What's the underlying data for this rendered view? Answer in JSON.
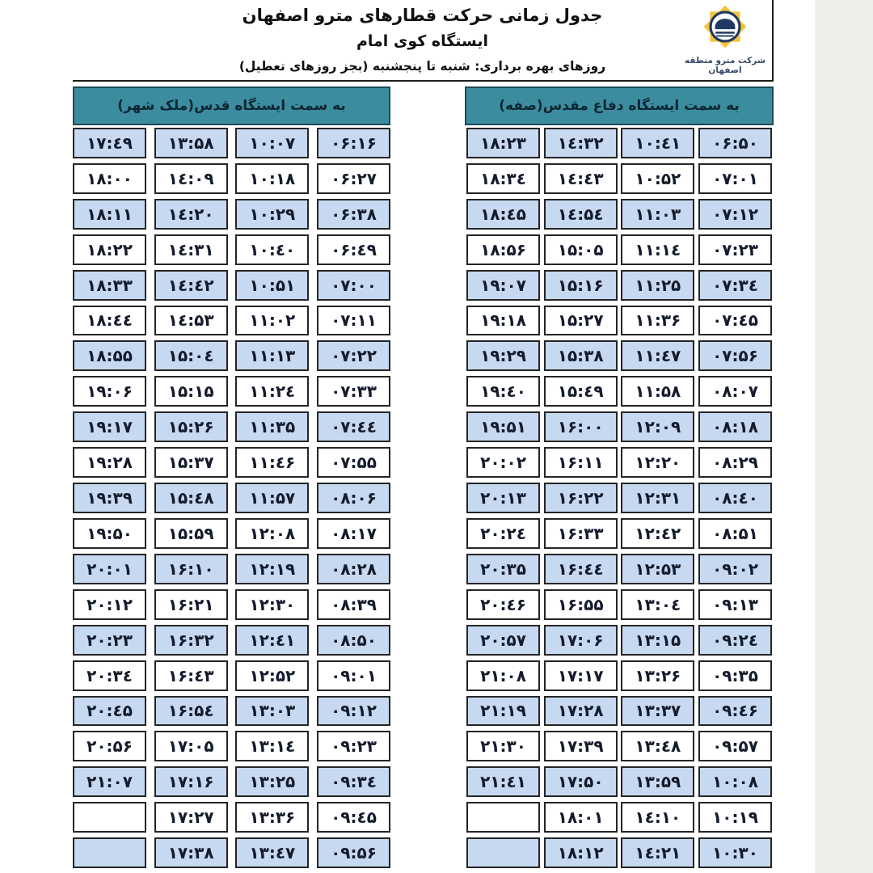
{
  "header": {
    "title": "جدول زمانی حرکت قطارهای مترو اصفهان",
    "station": "ایستگاه کوی امام",
    "operating_days": "روزهای بهره برداری: شنبه تا پنجشنبه (بجز روزهای تعطیل)",
    "company": "شرکت مترو منطقه اصفهان"
  },
  "colors": {
    "direction_header_teal": "#3b8c9f",
    "row_alternate_blue": "#c6d9f0",
    "logo_star_gold": "#f2c437",
    "logo_navy": "#1f3864",
    "cell_border": "#252525"
  },
  "tables": [
    {
      "id": "sofeh",
      "direction_label": "به سمت ایستگاه دفاع مقدس(صفه)",
      "columns": [
        [
          "۰۶:۵۰",
          "۰۷:۰۱",
          "۰۷:۱۲",
          "۰۷:۲۳",
          "۰۷:۳٤",
          "۰۷:٤۵",
          "۰۷:۵۶",
          "۰۸:۰۷",
          "۰۸:۱۸",
          "۰۸:۲۹",
          "۰۸:٤۰",
          "۰۸:۵۱",
          "۰۹:۰۲",
          "۰۹:۱۳",
          "۰۹:۲٤",
          "۰۹:۳۵",
          "۰۹:٤۶",
          "۰۹:۵۷",
          "۱۰:۰۸",
          "۱۰:۱۹",
          "۱۰:۳۰"
        ],
        [
          "۱۰:٤۱",
          "۱۰:۵۲",
          "۱۱:۰۳",
          "۱۱:۱٤",
          "۱۱:۲۵",
          "۱۱:۳۶",
          "۱۱:٤۷",
          "۱۱:۵۸",
          "۱۲:۰۹",
          "۱۲:۲۰",
          "۱۲:۳۱",
          "۱۲:٤۲",
          "۱۲:۵۳",
          "۱۳:۰٤",
          "۱۳:۱۵",
          "۱۳:۲۶",
          "۱۳:۳۷",
          "۱۳:٤۸",
          "۱۳:۵۹",
          "۱٤:۱۰",
          "۱٤:۲۱"
        ],
        [
          "۱٤:۳۲",
          "۱٤:٤۳",
          "۱٤:۵٤",
          "۱۵:۰۵",
          "۱۵:۱۶",
          "۱۵:۲۷",
          "۱۵:۳۸",
          "۱۵:٤۹",
          "۱۶:۰۰",
          "۱۶:۱۱",
          "۱۶:۲۲",
          "۱۶:۳۳",
          "۱۶:٤٤",
          "۱۶:۵۵",
          "۱۷:۰۶",
          "۱۷:۱۷",
          "۱۷:۲۸",
          "۱۷:۳۹",
          "۱۷:۵۰",
          "۱۸:۰۱",
          "۱۸:۱۲"
        ],
        [
          "۱۸:۲۳",
          "۱۸:۳٤",
          "۱۸:٤۵",
          "۱۸:۵۶",
          "۱۹:۰۷",
          "۱۹:۱۸",
          "۱۹:۲۹",
          "۱۹:٤۰",
          "۱۹:۵۱",
          "۲۰:۰۲",
          "۲۰:۱۳",
          "۲۰:۲٤",
          "۲۰:۳۵",
          "۲۰:٤۶",
          "۲۰:۵۷",
          "۲۱:۰۸",
          "۲۱:۱۹",
          "۲۱:۳۰",
          "۲۱:٤۱",
          "",
          ""
        ]
      ]
    },
    {
      "id": "qods",
      "direction_label": "به سمت ایستگاه قدس(ملک شهر)",
      "columns": [
        [
          "۰۶:۱۶",
          "۰۶:۲۷",
          "۰۶:۳۸",
          "۰۶:٤۹",
          "۰۷:۰۰",
          "۰۷:۱۱",
          "۰۷:۲۲",
          "۰۷:۳۳",
          "۰۷:٤٤",
          "۰۷:۵۵",
          "۰۸:۰۶",
          "۰۸:۱۷",
          "۰۸:۲۸",
          "۰۸:۳۹",
          "۰۸:۵۰",
          "۰۹:۰۱",
          "۰۹:۱۲",
          "۰۹:۲۳",
          "۰۹:۳٤",
          "۰۹:٤۵",
          "۰۹:۵۶"
        ],
        [
          "۱۰:۰۷",
          "۱۰:۱۸",
          "۱۰:۲۹",
          "۱۰:٤۰",
          "۱۰:۵۱",
          "۱۱:۰۲",
          "۱۱:۱۳",
          "۱۱:۲٤",
          "۱۱:۳۵",
          "۱۱:٤۶",
          "۱۱:۵۷",
          "۱۲:۰۸",
          "۱۲:۱۹",
          "۱۲:۳۰",
          "۱۲:٤۱",
          "۱۲:۵۲",
          "۱۳:۰۳",
          "۱۳:۱٤",
          "۱۳:۲۵",
          "۱۳:۳۶",
          "۱۳:٤۷"
        ],
        [
          "۱۳:۵۸",
          "۱٤:۰۹",
          "۱٤:۲۰",
          "۱٤:۳۱",
          "۱٤:٤۲",
          "۱٤:۵۳",
          "۱۵:۰٤",
          "۱۵:۱۵",
          "۱۵:۲۶",
          "۱۵:۳۷",
          "۱۵:٤۸",
          "۱۵:۵۹",
          "۱۶:۱۰",
          "۱۶:۲۱",
          "۱۶:۳۲",
          "۱۶:٤۳",
          "۱۶:۵٤",
          "۱۷:۰۵",
          "۱۷:۱۶",
          "۱۷:۲۷",
          "۱۷:۳۸"
        ],
        [
          "۱۷:٤۹",
          "۱۸:۰۰",
          "۱۸:۱۱",
          "۱۸:۲۲",
          "۱۸:۳۳",
          "۱۸:٤٤",
          "۱۸:۵۵",
          "۱۹:۰۶",
          "۱۹:۱۷",
          "۱۹:۲۸",
          "۱۹:۳۹",
          "۱۹:۵۰",
          "۲۰:۰۱",
          "۲۰:۱۲",
          "۲۰:۲۳",
          "۲۰:۳٤",
          "۲۰:٤۵",
          "۲۰:۵۶",
          "۲۱:۰۷",
          "",
          ""
        ]
      ]
    }
  ]
}
